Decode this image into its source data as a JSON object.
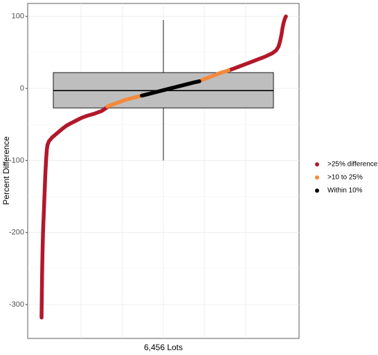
{
  "chart_data": {
    "type": "scatter",
    "x_label": "6,456 Lots",
    "y_label": "Percent Difference",
    "xlim": [
      -365,
      6804
    ],
    "ylim": [
      -347,
      118
    ],
    "yticks": [
      100,
      0,
      -100,
      -200,
      -300
    ],
    "grid": true,
    "legend_position": "right",
    "boxplot": {
      "color": "#bebebe",
      "whisker_low": -100,
      "q1": -27,
      "median": -3,
      "q3": 22,
      "whisker_high": 95
    },
    "series": [
      {
        "name": ">25% difference",
        "color": "#b2182b",
        "x": [
          1,
          5,
          10,
          15,
          22,
          30,
          40,
          55,
          70,
          85,
          100,
          120,
          140,
          160,
          200,
          280,
          370,
          460,
          550,
          650,
          750,
          900,
          1050,
          1200,
          1400,
          1600,
          1740,
          null,
          4940,
          5100,
          5300,
          5500,
          5700,
          5900,
          6100,
          6200,
          6260,
          6300,
          6340,
          6370,
          6400,
          6430,
          6456
        ],
        "values": [
          -318,
          -300,
          -280,
          -260,
          -240,
          -220,
          -200,
          -180,
          -160,
          -140,
          -120,
          -100,
          -85,
          -78,
          -73,
          -68,
          -64,
          -60,
          -56,
          -52,
          -49,
          -45,
          -41,
          -38,
          -35,
          -31,
          -26,
          null,
          25,
          28,
          32,
          36,
          40,
          44,
          49,
          53,
          58,
          65,
          75,
          85,
          92,
          97,
          100
        ]
      },
      {
        "name": ">10 to 25%",
        "color": "#f4893b",
        "x": [
          1740,
          1900,
          2050,
          2200,
          2350,
          2500,
          2650,
          null,
          4170,
          4300,
          4450,
          4600,
          4750,
          4940
        ],
        "values": [
          -25,
          -22,
          -19,
          -16,
          -14,
          -12,
          -10,
          null,
          10,
          13,
          16,
          19,
          22,
          25
        ]
      },
      {
        "name": "Within 10%",
        "color": "#000000",
        "x": [
          2650,
          2800,
          2950,
          3100,
          3250,
          3400,
          3550,
          3700,
          3850,
          4000,
          4170
        ],
        "values": [
          -10,
          -8,
          -6,
          -4,
          -2,
          0,
          2,
          4,
          6,
          8,
          10
        ]
      }
    ]
  }
}
